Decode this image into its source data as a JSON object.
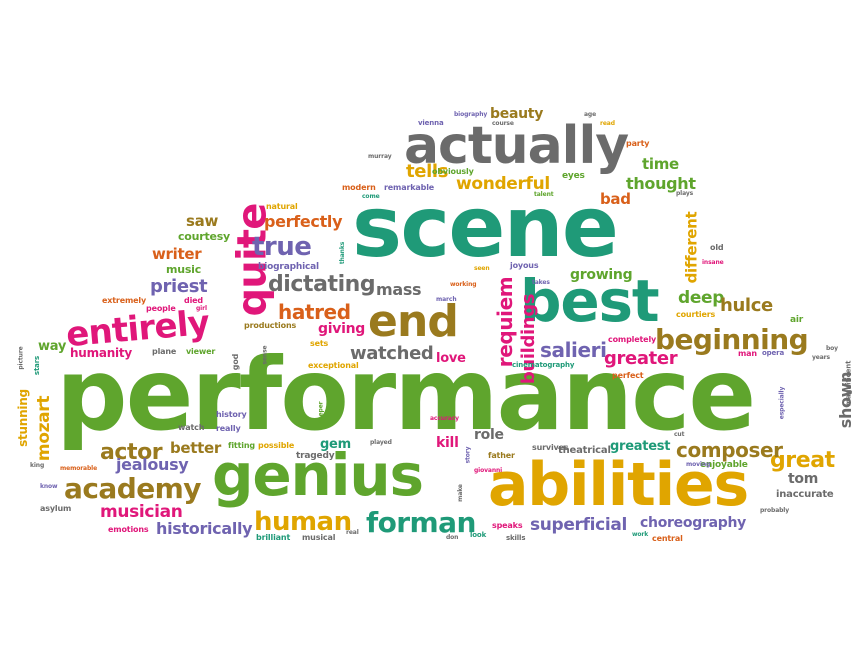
{
  "palette": {
    "green": "#5fa52d",
    "teal": "#1f9a78",
    "gray": "#6b6b6b",
    "orange": "#d9601a",
    "gold": "#e0a500",
    "pink": "#e0177a",
    "purple": "#6f63b0",
    "olive": "#9a7a1e"
  },
  "words": [
    {
      "text": "performance",
      "color": "green"
    },
    {
      "text": "scene",
      "color": "teal"
    },
    {
      "text": "actually",
      "color": "gray"
    },
    {
      "text": "abilities",
      "color": "gold"
    },
    {
      "text": "genius",
      "color": "green"
    },
    {
      "text": "best",
      "color": "teal"
    },
    {
      "text": "end",
      "color": "olive"
    },
    {
      "text": "entirely",
      "color": "pink"
    },
    {
      "text": "quite",
      "color": "pink"
    },
    {
      "text": "beginning",
      "color": "olive"
    },
    {
      "text": "academy",
      "color": "olive"
    },
    {
      "text": "forman",
      "color": "teal"
    },
    {
      "text": "human",
      "color": "gold"
    },
    {
      "text": "true",
      "color": "purple"
    },
    {
      "text": "dictating",
      "color": "gray"
    },
    {
      "text": "hatred",
      "color": "orange"
    },
    {
      "text": "tells",
      "color": "gold"
    },
    {
      "text": "wonderful",
      "color": "gold"
    },
    {
      "text": "great",
      "color": "gold"
    },
    {
      "text": "actor",
      "color": "olive"
    },
    {
      "text": "composer",
      "color": "olive"
    },
    {
      "text": "salieri",
      "color": "purple"
    },
    {
      "text": "greater",
      "color": "pink"
    },
    {
      "text": "requiem",
      "color": "pink"
    },
    {
      "text": "buildings",
      "color": "pink"
    },
    {
      "text": "watched",
      "color": "gray"
    },
    {
      "text": "mass",
      "color": "gray"
    },
    {
      "text": "priest",
      "color": "purple"
    },
    {
      "text": "perfectly",
      "color": "orange"
    },
    {
      "text": "writer",
      "color": "orange"
    },
    {
      "text": "saw",
      "color": "olive"
    },
    {
      "text": "deep",
      "color": "green"
    },
    {
      "text": "hulce",
      "color": "olive"
    },
    {
      "text": "different",
      "color": "gold"
    },
    {
      "text": "thought",
      "color": "green"
    },
    {
      "text": "time",
      "color": "green"
    },
    {
      "text": "bad",
      "color": "orange"
    },
    {
      "text": "beauty",
      "color": "olive"
    },
    {
      "text": "growing",
      "color": "green"
    },
    {
      "text": "superficial",
      "color": "purple"
    },
    {
      "text": "musician",
      "color": "pink"
    },
    {
      "text": "historically",
      "color": "purple"
    },
    {
      "text": "better",
      "color": "olive"
    },
    {
      "text": "jealousy",
      "color": "purple"
    },
    {
      "text": "choreography",
      "color": "purple"
    },
    {
      "text": "shown",
      "color": "gray"
    },
    {
      "text": "mozart",
      "color": "gold"
    },
    {
      "text": "stunning",
      "color": "gold"
    },
    {
      "text": "tom",
      "color": "gray"
    },
    {
      "text": "greatest",
      "color": "teal"
    },
    {
      "text": "role",
      "color": "gray"
    },
    {
      "text": "kill",
      "color": "pink"
    },
    {
      "text": "gem",
      "color": "teal"
    },
    {
      "text": "love",
      "color": "pink"
    },
    {
      "text": "humanity",
      "color": "pink"
    },
    {
      "text": "way",
      "color": "green"
    },
    {
      "text": "giving",
      "color": "pink"
    },
    {
      "text": "music",
      "color": "green"
    },
    {
      "text": "biographical",
      "color": "purple"
    },
    {
      "text": "inaccurate",
      "color": "gray"
    },
    {
      "text": "theatrical",
      "color": "gray"
    },
    {
      "text": "courtesy",
      "color": "green"
    },
    {
      "text": "natural",
      "color": "gold"
    },
    {
      "text": "modern",
      "color": "orange"
    },
    {
      "text": "remarkable",
      "color": "purple"
    },
    {
      "text": "obviously",
      "color": "green"
    },
    {
      "text": "eyes",
      "color": "green"
    },
    {
      "text": "joyous",
      "color": "purple"
    },
    {
      "text": "completely",
      "color": "pink"
    },
    {
      "text": "courtiers",
      "color": "gold"
    },
    {
      "text": "cinematography",
      "color": "teal"
    },
    {
      "text": "exceptional",
      "color": "gold"
    },
    {
      "text": "tragedy",
      "color": "gray"
    },
    {
      "text": "father",
      "color": "olive"
    },
    {
      "text": "survives",
      "color": "gray"
    },
    {
      "text": "enjoyable",
      "color": "green"
    },
    {
      "text": "emotions",
      "color": "pink"
    },
    {
      "text": "brilliant",
      "color": "teal"
    },
    {
      "text": "musical",
      "color": "gray"
    },
    {
      "text": "speaks",
      "color": "pink"
    },
    {
      "text": "skills",
      "color": "gray"
    },
    {
      "text": "central",
      "color": "orange"
    },
    {
      "text": "asylum",
      "color": "gray"
    },
    {
      "text": "watch",
      "color": "gray"
    },
    {
      "text": "really",
      "color": "purple"
    },
    {
      "text": "history",
      "color": "purple"
    },
    {
      "text": "fitting",
      "color": "green"
    },
    {
      "text": "possible",
      "color": "gold"
    },
    {
      "text": "extremely",
      "color": "orange"
    },
    {
      "text": "people",
      "color": "pink"
    },
    {
      "text": "died",
      "color": "pink"
    },
    {
      "text": "plane",
      "color": "gray"
    },
    {
      "text": "viewer",
      "color": "green"
    },
    {
      "text": "productions",
      "color": "olive"
    },
    {
      "text": "sets",
      "color": "gold"
    },
    {
      "text": "perfect",
      "color": "orange"
    },
    {
      "text": "man",
      "color": "pink"
    },
    {
      "text": "opera",
      "color": "purple"
    },
    {
      "text": "air",
      "color": "green"
    },
    {
      "text": "vienna",
      "color": "purple"
    },
    {
      "text": "biography",
      "color": "purple"
    },
    {
      "text": "party",
      "color": "orange"
    },
    {
      "text": "course",
      "color": "gray"
    },
    {
      "text": "read",
      "color": "gold"
    },
    {
      "text": "age",
      "color": "gray"
    },
    {
      "text": "talent",
      "color": "green"
    },
    {
      "text": "thanks",
      "color": "teal"
    },
    {
      "text": "seen",
      "color": "gold"
    },
    {
      "text": "working",
      "color": "orange"
    },
    {
      "text": "takes",
      "color": "purple"
    },
    {
      "text": "march",
      "color": "purple"
    },
    {
      "text": "old",
      "color": "gray"
    },
    {
      "text": "insane",
      "color": "pink"
    },
    {
      "text": "god",
      "color": "gray"
    },
    {
      "text": "girl",
      "color": "pink"
    },
    {
      "text": "sense",
      "color": "gray"
    },
    {
      "text": "deeper",
      "color": "green"
    },
    {
      "text": "accuracy",
      "color": "pink"
    },
    {
      "text": "played",
      "color": "gray"
    },
    {
      "text": "giovanni",
      "color": "pink"
    },
    {
      "text": "story",
      "color": "purple"
    },
    {
      "text": "make",
      "color": "gray"
    },
    {
      "text": "look",
      "color": "teal"
    },
    {
      "text": "don",
      "color": "gray"
    },
    {
      "text": "real",
      "color": "gray"
    },
    {
      "text": "work",
      "color": "teal"
    },
    {
      "text": "probably",
      "color": "gray"
    },
    {
      "text": "magnificent",
      "color": "gray"
    },
    {
      "text": "especially",
      "color": "purple"
    },
    {
      "text": "picture",
      "color": "gray"
    },
    {
      "text": "stars",
      "color": "teal"
    },
    {
      "text": "king",
      "color": "gray"
    },
    {
      "text": "memorable",
      "color": "orange"
    },
    {
      "text": "know",
      "color": "purple"
    },
    {
      "text": "years",
      "color": "gray"
    },
    {
      "text": "boy",
      "color": "gray"
    },
    {
      "text": "moving",
      "color": "purple"
    },
    {
      "text": "cut",
      "color": "gray"
    },
    {
      "text": "plays",
      "color": "gray"
    },
    {
      "text": "come",
      "color": "teal"
    },
    {
      "text": "murray",
      "color": "gray"
    }
  ]
}
